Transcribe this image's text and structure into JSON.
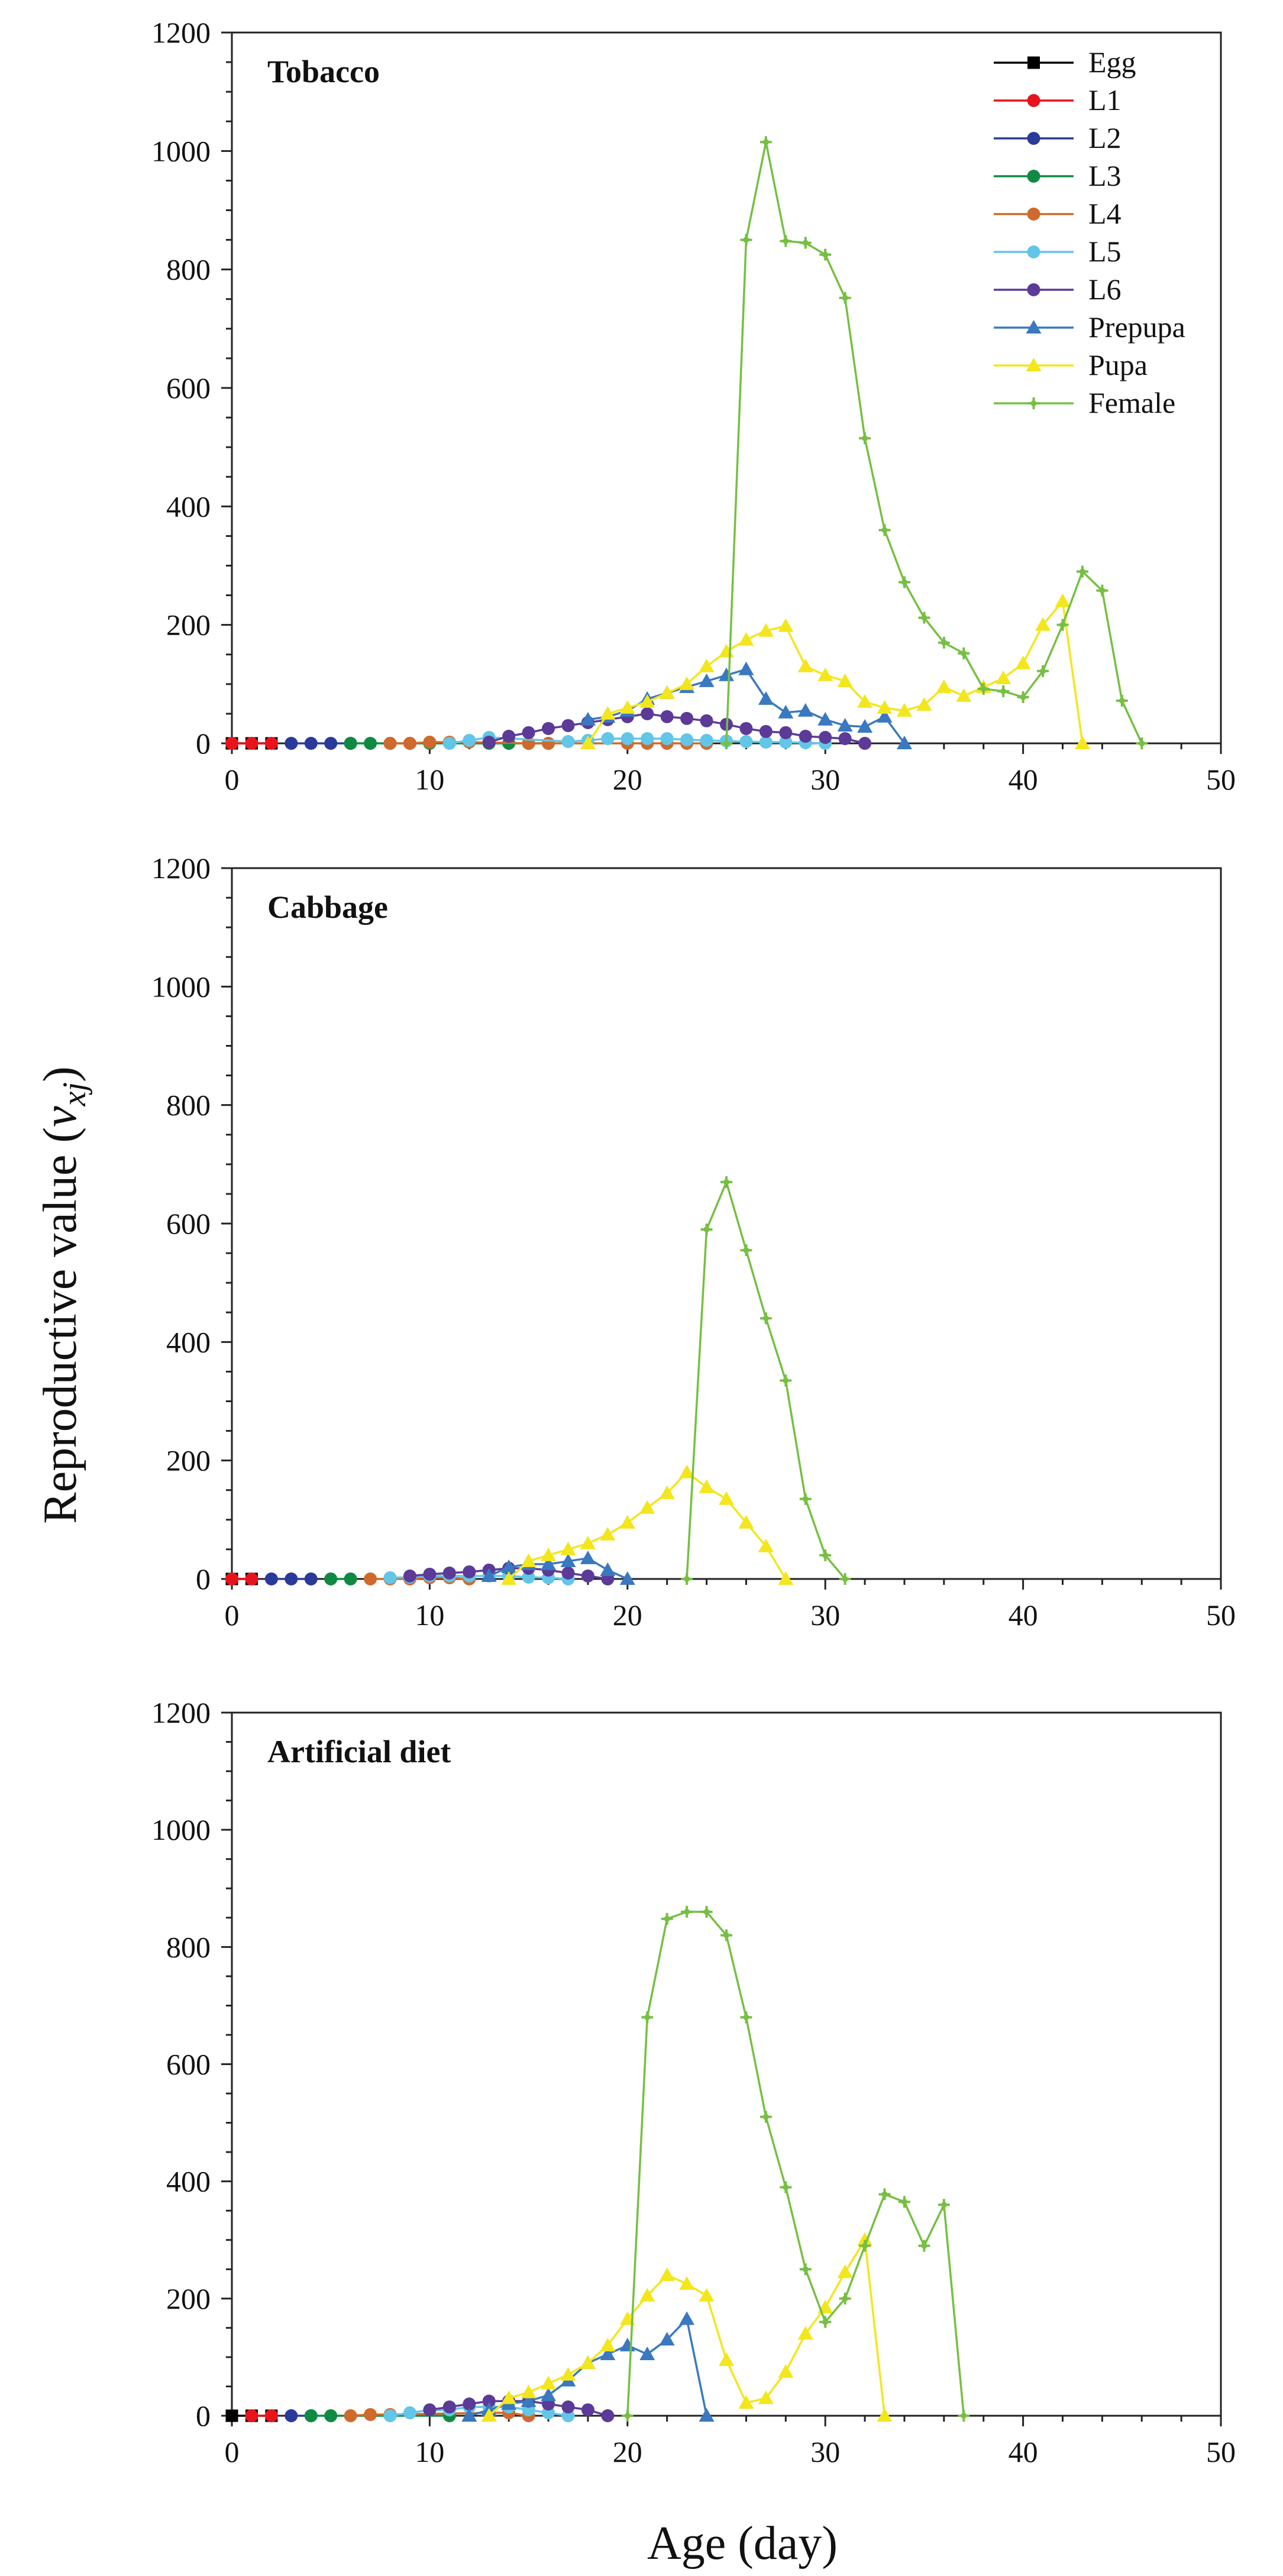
{
  "figure": {
    "ylabel_main": "Reproductive value (",
    "ylabel_var": "v",
    "ylabel_sub": "xj",
    "ylabel_close": ")",
    "xlabel": "Age (day)"
  },
  "chart_data": [
    {
      "type": "line",
      "title": "Tobacco",
      "xlabel": "Age (day)",
      "ylabel": "Reproductive value (vxj)",
      "xlim": [
        0,
        50
      ],
      "ylim": [
        0,
        1200
      ],
      "xticks": [
        0,
        10,
        20,
        30,
        40,
        50
      ],
      "yticks": [
        0,
        200,
        400,
        600,
        800,
        1000,
        1200
      ],
      "legend": "top-right",
      "series": [
        {
          "name": "Egg",
          "color": "#000000",
          "marker": "square",
          "x": [
            0,
            1,
            2
          ],
          "y": [
            0,
            0,
            0
          ]
        },
        {
          "name": "L1",
          "color": "#e8131b",
          "marker": "circle",
          "x": [
            0,
            1,
            2
          ],
          "y": [
            0,
            0,
            0
          ]
        },
        {
          "name": "L2",
          "color": "#2a3a9b",
          "marker": "circle",
          "x": [
            3,
            4,
            5,
            6
          ],
          "y": [
            0,
            0,
            0,
            0
          ]
        },
        {
          "name": "L3",
          "color": "#0f8a43",
          "marker": "circle",
          "x": [
            6,
            7,
            8,
            9,
            10,
            13,
            14,
            15,
            16
          ],
          "y": [
            0,
            0,
            0,
            0,
            0,
            0,
            0,
            0,
            0
          ]
        },
        {
          "name": "L4",
          "color": "#d06a2c",
          "marker": "circle",
          "x": [
            8,
            9,
            10,
            11,
            12,
            15,
            16,
            20,
            21,
            22,
            23,
            24
          ],
          "y": [
            0,
            0,
            2,
            2,
            2,
            0,
            0,
            0,
            0,
            0,
            0,
            0
          ]
        },
        {
          "name": "L5",
          "color": "#61c6e8",
          "marker": "circle",
          "x": [
            11,
            12,
            13,
            17,
            18,
            19,
            20,
            21,
            22,
            23,
            24,
            25,
            26,
            27,
            28,
            29,
            30
          ],
          "y": [
            0,
            5,
            10,
            3,
            5,
            8,
            8,
            8,
            8,
            6,
            5,
            4,
            3,
            2,
            2,
            1,
            0
          ]
        },
        {
          "name": "L6",
          "color": "#5b3a98",
          "marker": "circle",
          "x": [
            13,
            14,
            15,
            16,
            17,
            18,
            19,
            20,
            21,
            22,
            23,
            24,
            25,
            26,
            27,
            28,
            29,
            30,
            31,
            32
          ],
          "y": [
            2,
            12,
            18,
            25,
            30,
            35,
            40,
            45,
            50,
            45,
            42,
            38,
            32,
            25,
            20,
            18,
            12,
            10,
            8,
            0
          ]
        },
        {
          "name": "Prepupa",
          "color": "#3a78c0",
          "marker": "triangle",
          "x": [
            18,
            19,
            20,
            21,
            22,
            23,
            24,
            25,
            26,
            27,
            28,
            29,
            30,
            31,
            32,
            33,
            34
          ],
          "y": [
            40,
            45,
            55,
            75,
            85,
            95,
            105,
            115,
            125,
            75,
            52,
            55,
            40,
            30,
            28,
            45,
            0
          ]
        },
        {
          "name": "Pupa",
          "color": "#f3e61d",
          "marker": "triangle",
          "x": [
            18,
            19,
            20,
            21,
            22,
            23,
            24,
            25,
            26,
            27,
            28,
            29,
            30,
            31,
            32,
            33,
            34,
            35,
            36,
            37,
            38,
            39,
            40,
            41,
            42,
            43
          ],
          "y": [
            0,
            50,
            60,
            70,
            85,
            100,
            130,
            155,
            175,
            190,
            198,
            130,
            115,
            105,
            70,
            60,
            55,
            65,
            95,
            80,
            95,
            110,
            135,
            200,
            240,
            0
          ]
        },
        {
          "name": "Female",
          "color": "#76bf43",
          "marker": "cross",
          "x": [
            25,
            26,
            27,
            28,
            29,
            30,
            31,
            32,
            33,
            34,
            35,
            36,
            37,
            38,
            39,
            40,
            41,
            42,
            43,
            44,
            45,
            46
          ],
          "y": [
            0,
            850,
            1015,
            848,
            845,
            825,
            752,
            515,
            360,
            272,
            212,
            170,
            152,
            92,
            88,
            78,
            122,
            200,
            290,
            258,
            72,
            0
          ]
        }
      ]
    },
    {
      "type": "line",
      "title": "Cabbage",
      "xlabel": "Age (day)",
      "ylabel": "Reproductive value (vxj)",
      "xlim": [
        0,
        50
      ],
      "ylim": [
        0,
        1200
      ],
      "xticks": [
        0,
        10,
        20,
        30,
        40,
        50
      ],
      "yticks": [
        0,
        200,
        400,
        600,
        800,
        1000,
        1200
      ],
      "legend": "none",
      "series": [
        {
          "name": "Egg",
          "color": "#000000",
          "marker": "square",
          "x": [
            0,
            1
          ],
          "y": [
            0,
            0
          ]
        },
        {
          "name": "L1",
          "color": "#e8131b",
          "marker": "circle",
          "x": [
            0,
            1
          ],
          "y": [
            0,
            0
          ]
        },
        {
          "name": "L2",
          "color": "#2a3a9b",
          "marker": "circle",
          "x": [
            2,
            3,
            4
          ],
          "y": [
            0,
            0,
            0
          ]
        },
        {
          "name": "L3",
          "color": "#0f8a43",
          "marker": "circle",
          "x": [
            5,
            6
          ],
          "y": [
            0,
            0
          ]
        },
        {
          "name": "L4",
          "color": "#d06a2c",
          "marker": "circle",
          "x": [
            7,
            8,
            9,
            10,
            11,
            12
          ],
          "y": [
            0,
            0,
            0,
            2,
            2,
            0
          ]
        },
        {
          "name": "L5",
          "color": "#61c6e8",
          "marker": "circle",
          "x": [
            8,
            9,
            10,
            11,
            12,
            13,
            14,
            15,
            16,
            17
          ],
          "y": [
            2,
            3,
            5,
            5,
            5,
            5,
            5,
            3,
            2,
            0
          ]
        },
        {
          "name": "L6",
          "color": "#5b3a98",
          "marker": "circle",
          "x": [
            9,
            10,
            11,
            12,
            13,
            14,
            15,
            16,
            17,
            18,
            19
          ],
          "y": [
            5,
            8,
            10,
            12,
            15,
            18,
            18,
            15,
            10,
            5,
            0
          ]
        },
        {
          "name": "Prepupa",
          "color": "#3a78c0",
          "marker": "triangle",
          "x": [
            13,
            14,
            15,
            16,
            17,
            18,
            19,
            20
          ],
          "y": [
            5,
            20,
            25,
            25,
            30,
            35,
            15,
            0
          ]
        },
        {
          "name": "Pupa",
          "color": "#f3e61d",
          "marker": "triangle",
          "x": [
            14,
            15,
            16,
            17,
            18,
            19,
            20,
            21,
            22,
            23,
            24,
            25,
            26,
            27,
            28
          ],
          "y": [
            0,
            30,
            40,
            50,
            60,
            75,
            95,
            120,
            145,
            180,
            155,
            135,
            95,
            55,
            0
          ]
        },
        {
          "name": "Female",
          "color": "#76bf43",
          "marker": "cross",
          "x": [
            23,
            24,
            25,
            26,
            27,
            28,
            29,
            30,
            31
          ],
          "y": [
            0,
            590,
            670,
            555,
            440,
            335,
            135,
            40,
            0
          ]
        }
      ]
    },
    {
      "type": "line",
      "title": "Artificial diet",
      "xlabel": "Age (day)",
      "ylabel": "Reproductive value (vxj)",
      "xlim": [
        0,
        50
      ],
      "ylim": [
        0,
        1200
      ],
      "xticks": [
        0,
        10,
        20,
        30,
        40,
        50
      ],
      "yticks": [
        0,
        200,
        400,
        600,
        800,
        1000,
        1200
      ],
      "legend": "none",
      "series": [
        {
          "name": "Egg",
          "color": "#000000",
          "marker": "square",
          "x": [
            0,
            1,
            2
          ],
          "y": [
            0,
            0,
            0
          ]
        },
        {
          "name": "L1",
          "color": "#e8131b",
          "marker": "circle",
          "x": [
            1,
            2
          ],
          "y": [
            0,
            0
          ]
        },
        {
          "name": "L2",
          "color": "#2a3a9b",
          "marker": "circle",
          "x": [
            3,
            4
          ],
          "y": [
            0,
            0
          ]
        },
        {
          "name": "L3",
          "color": "#0f8a43",
          "marker": "circle",
          "x": [
            4,
            5,
            11
          ],
          "y": [
            0,
            0,
            0
          ]
        },
        {
          "name": "L4",
          "color": "#d06a2c",
          "marker": "circle",
          "x": [
            6,
            7,
            8,
            13,
            14,
            15
          ],
          "y": [
            0,
            2,
            2,
            5,
            5,
            0
          ]
        },
        {
          "name": "L5",
          "color": "#61c6e8",
          "marker": "circle",
          "x": [
            8,
            9,
            10,
            11,
            12,
            13,
            14,
            15,
            16,
            17
          ],
          "y": [
            0,
            5,
            10,
            10,
            15,
            15,
            15,
            10,
            5,
            0
          ]
        },
        {
          "name": "L6",
          "color": "#5b3a98",
          "marker": "circle",
          "x": [
            10,
            11,
            12,
            13,
            14,
            15,
            16,
            17,
            18,
            19
          ],
          "y": [
            10,
            15,
            20,
            25,
            25,
            25,
            20,
            15,
            10,
            0
          ]
        },
        {
          "name": "Prepupa",
          "color": "#3a78c0",
          "marker": "triangle",
          "x": [
            12,
            13,
            14,
            15,
            16,
            17,
            18,
            19,
            20,
            21,
            22,
            23,
            24
          ],
          "y": [
            0,
            10,
            20,
            25,
            35,
            60,
            90,
            105,
            120,
            105,
            130,
            165,
            0
          ]
        },
        {
          "name": "Pupa",
          "color": "#f3e61d",
          "marker": "triangle",
          "x": [
            13,
            14,
            15,
            16,
            17,
            18,
            19,
            20,
            21,
            22,
            23,
            24,
            25,
            26,
            27,
            28,
            29,
            30,
            31,
            32,
            33
          ],
          "y": [
            0,
            30,
            40,
            55,
            70,
            90,
            120,
            165,
            205,
            240,
            225,
            205,
            95,
            22,
            30,
            75,
            140,
            185,
            245,
            300,
            0
          ]
        },
        {
          "name": "Female",
          "color": "#76bf43",
          "marker": "cross",
          "x": [
            20,
            21,
            22,
            23,
            24,
            25,
            26,
            27,
            28,
            29,
            30,
            31,
            32,
            33,
            34,
            35,
            36,
            37
          ],
          "y": [
            0,
            680,
            848,
            860,
            860,
            820,
            680,
            510,
            390,
            250,
            160,
            200,
            290,
            378,
            365,
            290,
            360,
            0
          ]
        }
      ]
    }
  ]
}
